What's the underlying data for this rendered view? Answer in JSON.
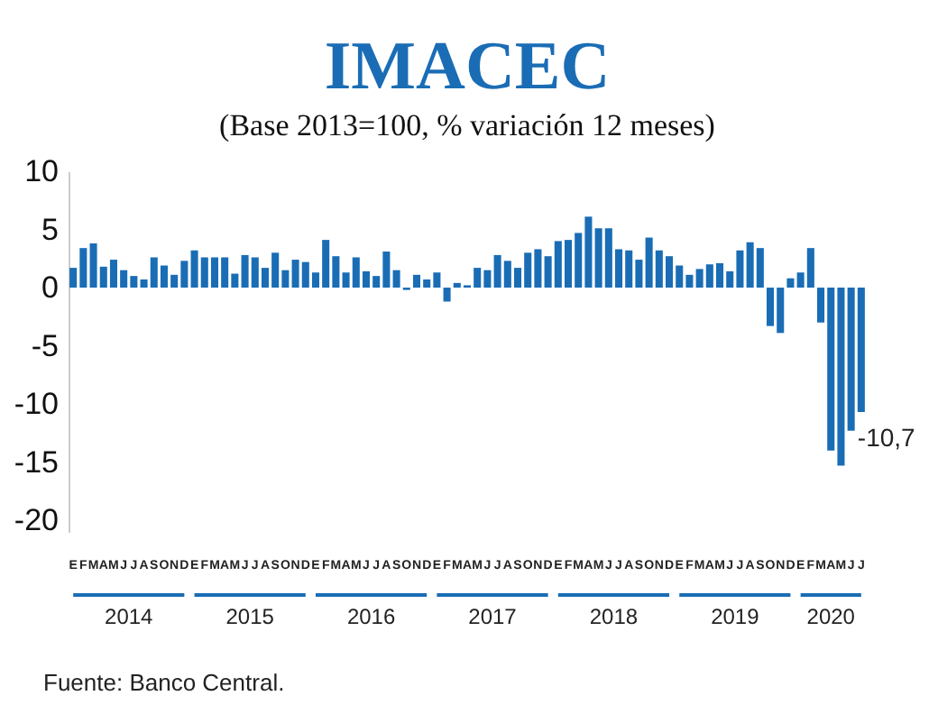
{
  "chart_data": {
    "type": "bar",
    "title": "IMACEC",
    "subtitle": "(Base 2013=100, % variación 12 meses)",
    "categories": [
      "E",
      "F",
      "M",
      "A",
      "M",
      "J",
      "J",
      "A",
      "S",
      "O",
      "N",
      "D",
      "E",
      "F",
      "M",
      "A",
      "M",
      "J",
      "J",
      "A",
      "S",
      "O",
      "N",
      "D",
      "E",
      "F",
      "M",
      "A",
      "M",
      "J",
      "J",
      "A",
      "S",
      "O",
      "N",
      "D",
      "E",
      "F",
      "M",
      "A",
      "M",
      "J",
      "J",
      "A",
      "S",
      "O",
      "N",
      "D",
      "E",
      "F",
      "M",
      "A",
      "M",
      "J",
      "J",
      "A",
      "S",
      "O",
      "N",
      "D",
      "E",
      "F",
      "M",
      "A",
      "M",
      "J",
      "J",
      "A",
      "S",
      "O",
      "N",
      "D",
      "E",
      "F",
      "M",
      "A",
      "M",
      "J",
      "J"
    ],
    "values": [
      1.7,
      3.4,
      3.8,
      1.8,
      2.4,
      1.5,
      1.0,
      0.7,
      2.6,
      1.9,
      1.1,
      2.3,
      3.2,
      2.6,
      2.6,
      2.6,
      1.2,
      2.8,
      2.6,
      1.7,
      3.0,
      1.5,
      2.4,
      2.2,
      1.3,
      4.1,
      2.7,
      1.3,
      2.6,
      1.4,
      1.0,
      3.1,
      1.5,
      -0.2,
      1.1,
      0.7,
      1.3,
      -1.2,
      0.4,
      0.2,
      1.7,
      1.5,
      2.8,
      2.3,
      1.7,
      3.0,
      3.3,
      2.7,
      4.0,
      4.1,
      4.7,
      6.1,
      5.1,
      5.1,
      3.3,
      3.2,
      2.4,
      4.3,
      3.2,
      2.7,
      1.9,
      1.1,
      1.6,
      2.0,
      2.1,
      1.4,
      3.2,
      3.9,
      3.4,
      -3.3,
      -3.9,
      0.8,
      1.3,
      3.4,
      -3.0,
      -14.0,
      -15.3,
      -12.3,
      -10.7
    ],
    "value_labels": [
      null,
      null,
      null,
      null,
      null,
      null,
      null,
      null,
      null,
      null,
      null,
      null,
      null,
      null,
      null,
      null,
      null,
      null,
      null,
      null,
      null,
      null,
      null,
      null,
      null,
      null,
      null,
      null,
      null,
      null,
      null,
      null,
      null,
      null,
      null,
      null,
      null,
      null,
      null,
      null,
      null,
      null,
      null,
      null,
      null,
      null,
      null,
      null,
      null,
      null,
      null,
      null,
      null,
      null,
      null,
      null,
      null,
      null,
      null,
      null,
      null,
      null,
      null,
      null,
      null,
      null,
      null,
      null,
      null,
      null,
      null,
      null,
      null,
      null,
      null,
      null,
      null,
      null,
      "-10,7"
    ],
    "color": "#1a6db5",
    "ylim": [
      -21,
      10
    ],
    "yticks": [
      -20,
      -15,
      -10,
      -5,
      0,
      5,
      10
    ],
    "grid": false,
    "annotations": [
      "2014",
      "2015",
      "2016",
      "2017",
      "2018",
      "2019",
      "2020",
      "Fuente: Banco Central."
    ]
  }
}
